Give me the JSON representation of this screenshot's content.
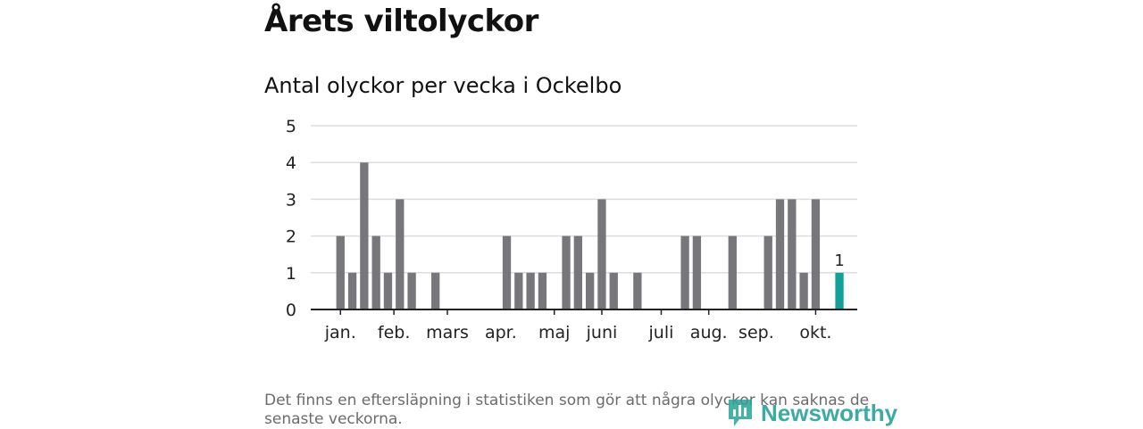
{
  "header": {
    "title": "Årets viltolyckor",
    "subtitle": "Antal olyckor per vecka i Ockelbo"
  },
  "footer": {
    "note": "Det finns en eftersläpning i statistiken som gör att några olyckor kan saknas de senaste veckorna.",
    "brand": "Newsworthy"
  },
  "colors": {
    "bar": "#77767b",
    "highlight": "#12a19a",
    "grid": "#dddddd",
    "axis": "#222222",
    "brand": "#27a398"
  },
  "chart_data": {
    "type": "bar",
    "title": "Antal olyckor per vecka i Ockelbo",
    "xlabel": "",
    "ylabel": "",
    "ylim": [
      0,
      5
    ],
    "yticks": [
      0,
      1,
      2,
      3,
      4,
      5
    ],
    "grid": true,
    "weeks": [
      1,
      2,
      3,
      4,
      5,
      6,
      7,
      8,
      9,
      10,
      11,
      12,
      13,
      14,
      15,
      16,
      17,
      18,
      19,
      20,
      21,
      22,
      23,
      24,
      25,
      26,
      27,
      28,
      29,
      30,
      31,
      32,
      33,
      34,
      35,
      36,
      37,
      38,
      39,
      40,
      41,
      42,
      43,
      44,
      45,
      46
    ],
    "values": [
      0,
      0,
      2,
      1,
      4,
      2,
      1,
      3,
      1,
      0,
      1,
      0,
      0,
      0,
      0,
      0,
      2,
      1,
      1,
      1,
      0,
      2,
      2,
      1,
      3,
      1,
      0,
      1,
      0,
      0,
      0,
      2,
      2,
      0,
      0,
      2,
      0,
      0,
      2,
      3,
      3,
      1,
      3,
      0,
      1,
      0
    ],
    "highlight_index": 44,
    "highlight_label": "1",
    "month_labels": [
      {
        "label": "jan.",
        "week": 3
      },
      {
        "label": "feb.",
        "week": 7.5
      },
      {
        "label": "mars",
        "week": 12
      },
      {
        "label": "apr.",
        "week": 16.5
      },
      {
        "label": "maj",
        "week": 21
      },
      {
        "label": "juni",
        "week": 25
      },
      {
        "label": "juli",
        "week": 30
      },
      {
        "label": "aug.",
        "week": 34
      },
      {
        "label": "sep.",
        "week": 38
      },
      {
        "label": "okt.",
        "week": 43
      }
    ],
    "month_ticks": [
      3,
      7.5,
      12,
      21,
      25,
      30,
      34,
      43
    ]
  }
}
